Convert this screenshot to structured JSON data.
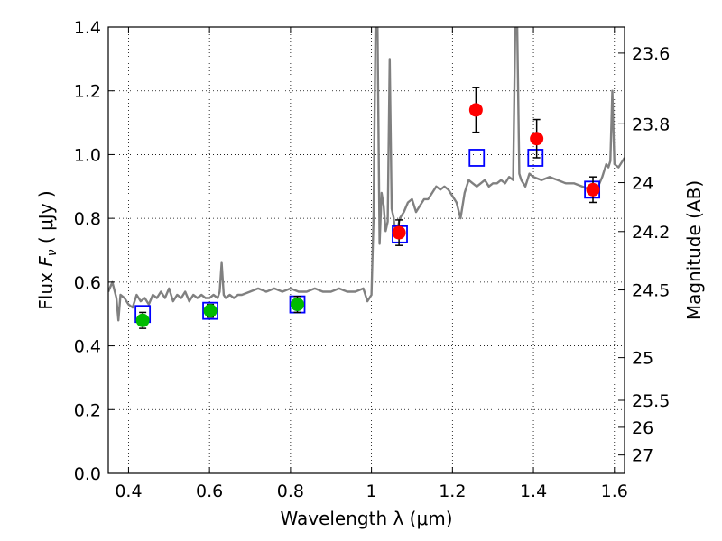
{
  "chart_data": {
    "type": "scatter",
    "xlabel": "Wavelength  λ (μm)",
    "ylabel_prefix": "Flux ",
    "ylabel_symbol": "F",
    "ylabel_sub": "ν",
    "ylabel_suffix": "  ( μJy )",
    "y2label": "Magnitude (AB)",
    "xlim": [
      0.35,
      1.625
    ],
    "ylim": [
      0.0,
      1.4
    ],
    "grid": true,
    "legend": "none",
    "x_ticks": [
      {
        "value": 0.4,
        "label": "0.4"
      },
      {
        "value": 0.6,
        "label": "0.6"
      },
      {
        "value": 0.8,
        "label": "0.8"
      },
      {
        "value": 1.0,
        "label": "1"
      },
      {
        "value": 1.2,
        "label": "1.2"
      },
      {
        "value": 1.4,
        "label": "1.4"
      },
      {
        "value": 1.6,
        "label": "1.6"
      }
    ],
    "y_ticks": [
      {
        "value": 0.0,
        "label": "0.0"
      },
      {
        "value": 0.2,
        "label": "0.2"
      },
      {
        "value": 0.4,
        "label": "0.4"
      },
      {
        "value": 0.6,
        "label": "0.6"
      },
      {
        "value": 0.8,
        "label": "0.8"
      },
      {
        "value": 1.0,
        "label": "1.0"
      },
      {
        "value": 1.2,
        "label": "1.2"
      },
      {
        "value": 1.4,
        "label": "1.4"
      }
    ],
    "y2_ticks": [
      {
        "value": 23.6,
        "label": "23.6"
      },
      {
        "value": 23.8,
        "label": "23.8"
      },
      {
        "value": 24.0,
        "label": "24"
      },
      {
        "value": 24.2,
        "label": "24.2"
      },
      {
        "value": 24.5,
        "label": "24.5"
      },
      {
        "value": 25.0,
        "label": "25"
      },
      {
        "value": 25.5,
        "label": "25.5"
      },
      {
        "value": 26.0,
        "label": "26"
      },
      {
        "value": 27.0,
        "label": "27"
      }
    ],
    "colors": {
      "spectrum": "#808080",
      "model": "#0000ff",
      "optical": "#00bb00",
      "nir": "#ff0000",
      "errorbar": "#000000",
      "grid": "#000000"
    },
    "series": [
      {
        "kind": "line",
        "x": [
          0.35,
          0.36,
          0.37,
          0.375,
          0.38,
          0.39,
          0.4,
          0.41,
          0.42,
          0.43,
          0.44,
          0.45,
          0.46,
          0.47,
          0.48,
          0.49,
          0.5,
          0.51,
          0.52,
          0.53,
          0.54,
          0.55,
          0.56,
          0.57,
          0.58,
          0.59,
          0.6,
          0.61,
          0.62,
          0.625,
          0.63,
          0.635,
          0.64,
          0.65,
          0.66,
          0.67,
          0.68,
          0.7,
          0.72,
          0.74,
          0.76,
          0.78,
          0.8,
          0.82,
          0.84,
          0.86,
          0.88,
          0.9,
          0.92,
          0.94,
          0.96,
          0.98,
          0.99,
          1.0,
          1.005,
          1.01,
          1.015,
          1.02,
          1.025,
          1.03,
          1.035,
          1.04,
          1.045,
          1.05,
          1.055,
          1.06,
          1.07,
          1.08,
          1.09,
          1.1,
          1.11,
          1.12,
          1.13,
          1.14,
          1.15,
          1.16,
          1.17,
          1.18,
          1.19,
          1.2,
          1.21,
          1.22,
          1.23,
          1.24,
          1.25,
          1.26,
          1.27,
          1.28,
          1.29,
          1.3,
          1.31,
          1.32,
          1.33,
          1.34,
          1.35,
          1.355,
          1.36,
          1.365,
          1.37,
          1.38,
          1.39,
          1.4,
          1.42,
          1.44,
          1.46,
          1.48,
          1.5,
          1.52,
          1.54,
          1.55,
          1.56,
          1.57,
          1.58,
          1.585,
          1.59,
          1.595,
          1.6,
          1.61,
          1.625
        ],
        "y": [
          0.57,
          0.6,
          0.55,
          0.48,
          0.56,
          0.55,
          0.53,
          0.52,
          0.56,
          0.54,
          0.55,
          0.53,
          0.56,
          0.55,
          0.57,
          0.55,
          0.58,
          0.54,
          0.56,
          0.55,
          0.57,
          0.54,
          0.56,
          0.55,
          0.56,
          0.55,
          0.55,
          0.56,
          0.55,
          0.57,
          0.66,
          0.56,
          0.55,
          0.56,
          0.55,
          0.56,
          0.56,
          0.57,
          0.58,
          0.57,
          0.58,
          0.57,
          0.58,
          0.57,
          0.57,
          0.58,
          0.57,
          0.57,
          0.58,
          0.57,
          0.57,
          0.58,
          0.54,
          0.56,
          0.8,
          1.4,
          1.4,
          0.72,
          0.88,
          0.84,
          0.76,
          0.79,
          1.3,
          0.83,
          0.8,
          0.74,
          0.8,
          0.82,
          0.85,
          0.86,
          0.82,
          0.84,
          0.86,
          0.86,
          0.88,
          0.9,
          0.89,
          0.9,
          0.89,
          0.87,
          0.85,
          0.8,
          0.88,
          0.92,
          0.91,
          0.9,
          0.91,
          0.92,
          0.9,
          0.91,
          0.91,
          0.92,
          0.91,
          0.93,
          0.92,
          1.4,
          1.4,
          0.94,
          0.92,
          0.9,
          0.94,
          0.93,
          0.92,
          0.93,
          0.92,
          0.91,
          0.91,
          0.9,
          0.89,
          0.88,
          0.9,
          0.93,
          0.97,
          0.96,
          0.98,
          1.2,
          0.97,
          0.96,
          0.99
        ]
      },
      {
        "kind": "model",
        "x": [
          0.435,
          0.602,
          0.817,
          1.07,
          1.26,
          1.405,
          1.545
        ],
        "y": [
          0.5,
          0.51,
          0.53,
          0.75,
          0.99,
          0.99,
          0.89
        ]
      },
      {
        "kind": "optical",
        "x": [
          0.435,
          0.602,
          0.817
        ],
        "y": [
          0.48,
          0.51,
          0.53
        ],
        "yerr": [
          0.025,
          0.02,
          0.025
        ]
      },
      {
        "kind": "nir",
        "x": [
          1.068,
          1.258,
          1.408,
          1.547
        ],
        "y": [
          0.755,
          1.14,
          1.05,
          0.89
        ],
        "yerr": [
          0.04,
          0.07,
          0.06,
          0.04
        ]
      }
    ]
  }
}
